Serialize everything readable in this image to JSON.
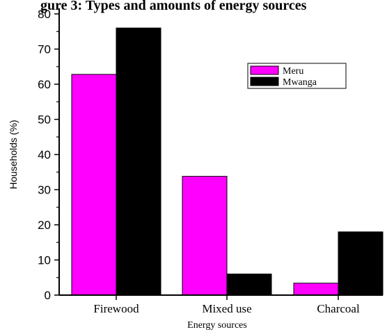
{
  "chart_data": {
    "type": "bar",
    "title": "gure 3: Types and amounts of energy sources",
    "xlabel": "Energy sources",
    "ylabel": "Households (%)",
    "categories": [
      "Firewood",
      "Mixed use",
      "Charcoal"
    ],
    "series": [
      {
        "name": "Meru",
        "color": "#ff00ff",
        "values": [
          62.8,
          33.8,
          3.4
        ]
      },
      {
        "name": "Mwanga",
        "color": "#000000",
        "values": [
          76,
          6,
          18
        ]
      }
    ],
    "ylim": [
      0,
      80
    ],
    "yticks": [
      0,
      10,
      20,
      30,
      40,
      50,
      60,
      70,
      80
    ],
    "grid": false,
    "legend": "top-right"
  }
}
